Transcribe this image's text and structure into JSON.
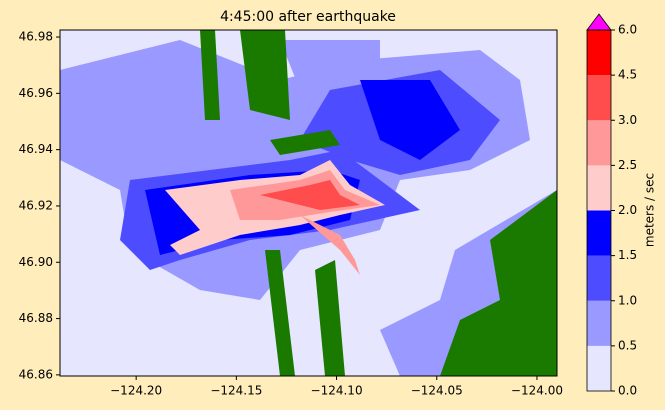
{
  "chart_data": {
    "type": "map",
    "title": "4:45:00 after earthquake",
    "xlim": [
      -124.238,
      -123.99
    ],
    "ylim": [
      46.8596,
      46.9825
    ],
    "xticks": [
      {
        "value": -124.2,
        "label": "−124.20"
      },
      {
        "value": -124.15,
        "label": "−124.15"
      },
      {
        "value": -124.1,
        "label": "−124.10"
      },
      {
        "value": -124.05,
        "label": "−124.05"
      },
      {
        "value": -124.0,
        "label": "−124.00"
      }
    ],
    "yticks": [
      46.86,
      46.88,
      {
        "value": 46.9,
        "label": "46.90"
      },
      46.92,
      46.94,
      46.96,
      46.98
    ],
    "colorbar": {
      "label": "meters / sec",
      "ticks": [
        {
          "value": 0,
          "label": "0.0"
        },
        0.5,
        {
          "value": 1,
          "label": "1.0"
        },
        1.5,
        {
          "value": 2,
          "label": "2.0"
        },
        2.5,
        {
          "value": 3,
          "label": "3.0"
        },
        4.5,
        {
          "value": 6,
          "label": "6.0"
        }
      ],
      "colors": [
        "#e6e6ff",
        "#9999ff",
        "#4d4dff",
        "#0000ff",
        "#ffcccc",
        "#ff9999",
        "#ff4d4d",
        "#ff0000"
      ],
      "extend_color": "#ff00ff"
    }
  }
}
